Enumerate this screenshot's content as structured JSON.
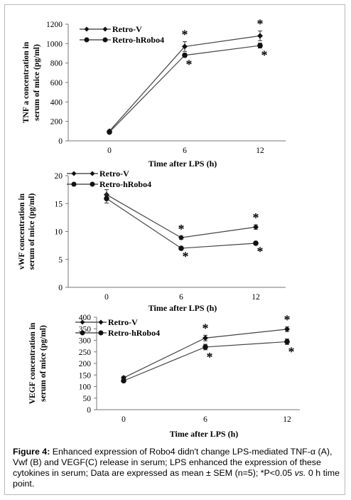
{
  "chart_data": [
    {
      "type": "line",
      "panel": "A",
      "x": [
        0,
        6,
        12
      ],
      "xticks": [
        "0",
        "6",
        "12"
      ],
      "xlabel": "Time after LPS (h)",
      "ylabel_lines": [
        "TNF a concentration in",
        "serum of mice (pg/ml)"
      ],
      "ylim": [
        0,
        1200
      ],
      "yticks": [
        0,
        200,
        400,
        600,
        800,
        1000,
        1200
      ],
      "series": [
        {
          "name": "Retro-V",
          "values": [
            100,
            970,
            1080
          ],
          "errors": [
            10,
            50,
            50
          ],
          "marker": "diamond"
        },
        {
          "name": "Retro-hRobo4",
          "values": [
            90,
            880,
            980
          ],
          "errors": [
            10,
            20,
            25
          ],
          "marker": "circle"
        }
      ],
      "annotations": [
        {
          "text": "*",
          "x": 6,
          "series": 0,
          "pos": "above"
        },
        {
          "text": "*",
          "x": 6,
          "series": 1,
          "pos": "below"
        },
        {
          "text": "*",
          "x": 12,
          "series": 0,
          "pos": "above"
        },
        {
          "text": "*",
          "x": 12,
          "series": 1,
          "pos": "below"
        }
      ]
    },
    {
      "type": "line",
      "panel": "B",
      "x": [
        0,
        6,
        12
      ],
      "xticks": [
        "0",
        "6",
        "12"
      ],
      "xlabel": "Time after LPS (h)",
      "ylabel_lines": [
        "vWF concentration in",
        "serum of mice (pg/ml)"
      ],
      "ylim": [
        0,
        20
      ],
      "yticks": [
        0,
        5,
        10,
        15,
        20
      ],
      "series": [
        {
          "name": "Retro-V",
          "values": [
            16.6,
            8.9,
            10.8
          ],
          "errors": [
            0.9,
            0.3,
            0.4
          ],
          "marker": "diamond"
        },
        {
          "name": "Retro-hRobo4",
          "values": [
            15.9,
            7.0,
            7.9
          ],
          "errors": [
            0.8,
            0.2,
            0.2
          ],
          "marker": "circle"
        }
      ],
      "annotations": [
        {
          "text": "*",
          "x": 6,
          "series": 0,
          "pos": "above"
        },
        {
          "text": "*",
          "x": 6,
          "series": 1,
          "pos": "below"
        },
        {
          "text": "*",
          "x": 12,
          "series": 0,
          "pos": "above"
        },
        {
          "text": "*",
          "x": 12,
          "series": 1,
          "pos": "below"
        }
      ]
    },
    {
      "type": "line",
      "panel": "C",
      "x": [
        0,
        6,
        12
      ],
      "xticks": [
        "0",
        "6",
        "12"
      ],
      "xlabel": "Time after LPS (h)",
      "ylabel_lines": [
        "VEGF concentration in",
        "serum of mice (pg/ml)"
      ],
      "ylim": [
        0,
        400
      ],
      "yticks": [
        0,
        50,
        100,
        150,
        200,
        250,
        300,
        350,
        400
      ],
      "series": [
        {
          "name": "Retro-V",
          "values": [
            138,
            310,
            348
          ],
          "errors": [
            6,
            12,
            10
          ],
          "marker": "diamond"
        },
        {
          "name": "Retro-hRobo4",
          "values": [
            125,
            271,
            294
          ],
          "errors": [
            5,
            12,
            12
          ],
          "marker": "circle"
        }
      ],
      "annotations": [
        {
          "text": "*",
          "x": 6,
          "series": 0,
          "pos": "above"
        },
        {
          "text": "*",
          "x": 6,
          "series": 1,
          "pos": "below"
        },
        {
          "text": "*",
          "x": 12,
          "series": 0,
          "pos": "above"
        },
        {
          "text": "*",
          "x": 12,
          "series": 1,
          "pos": "below"
        }
      ]
    }
  ],
  "caption": {
    "label": "Figure 4:",
    "text_1": " Enhanced expression of Robo4 didn't change LPS-mediated TNF-α (A), Vwf (B) and VEGF(C) release in serum; LPS enhanced the expression of these cytokines in serum; Data are expressed as mean ± SEM (n=5); *P<0.05 ",
    "vs": "vs.",
    "text_2": " 0 h time point."
  }
}
